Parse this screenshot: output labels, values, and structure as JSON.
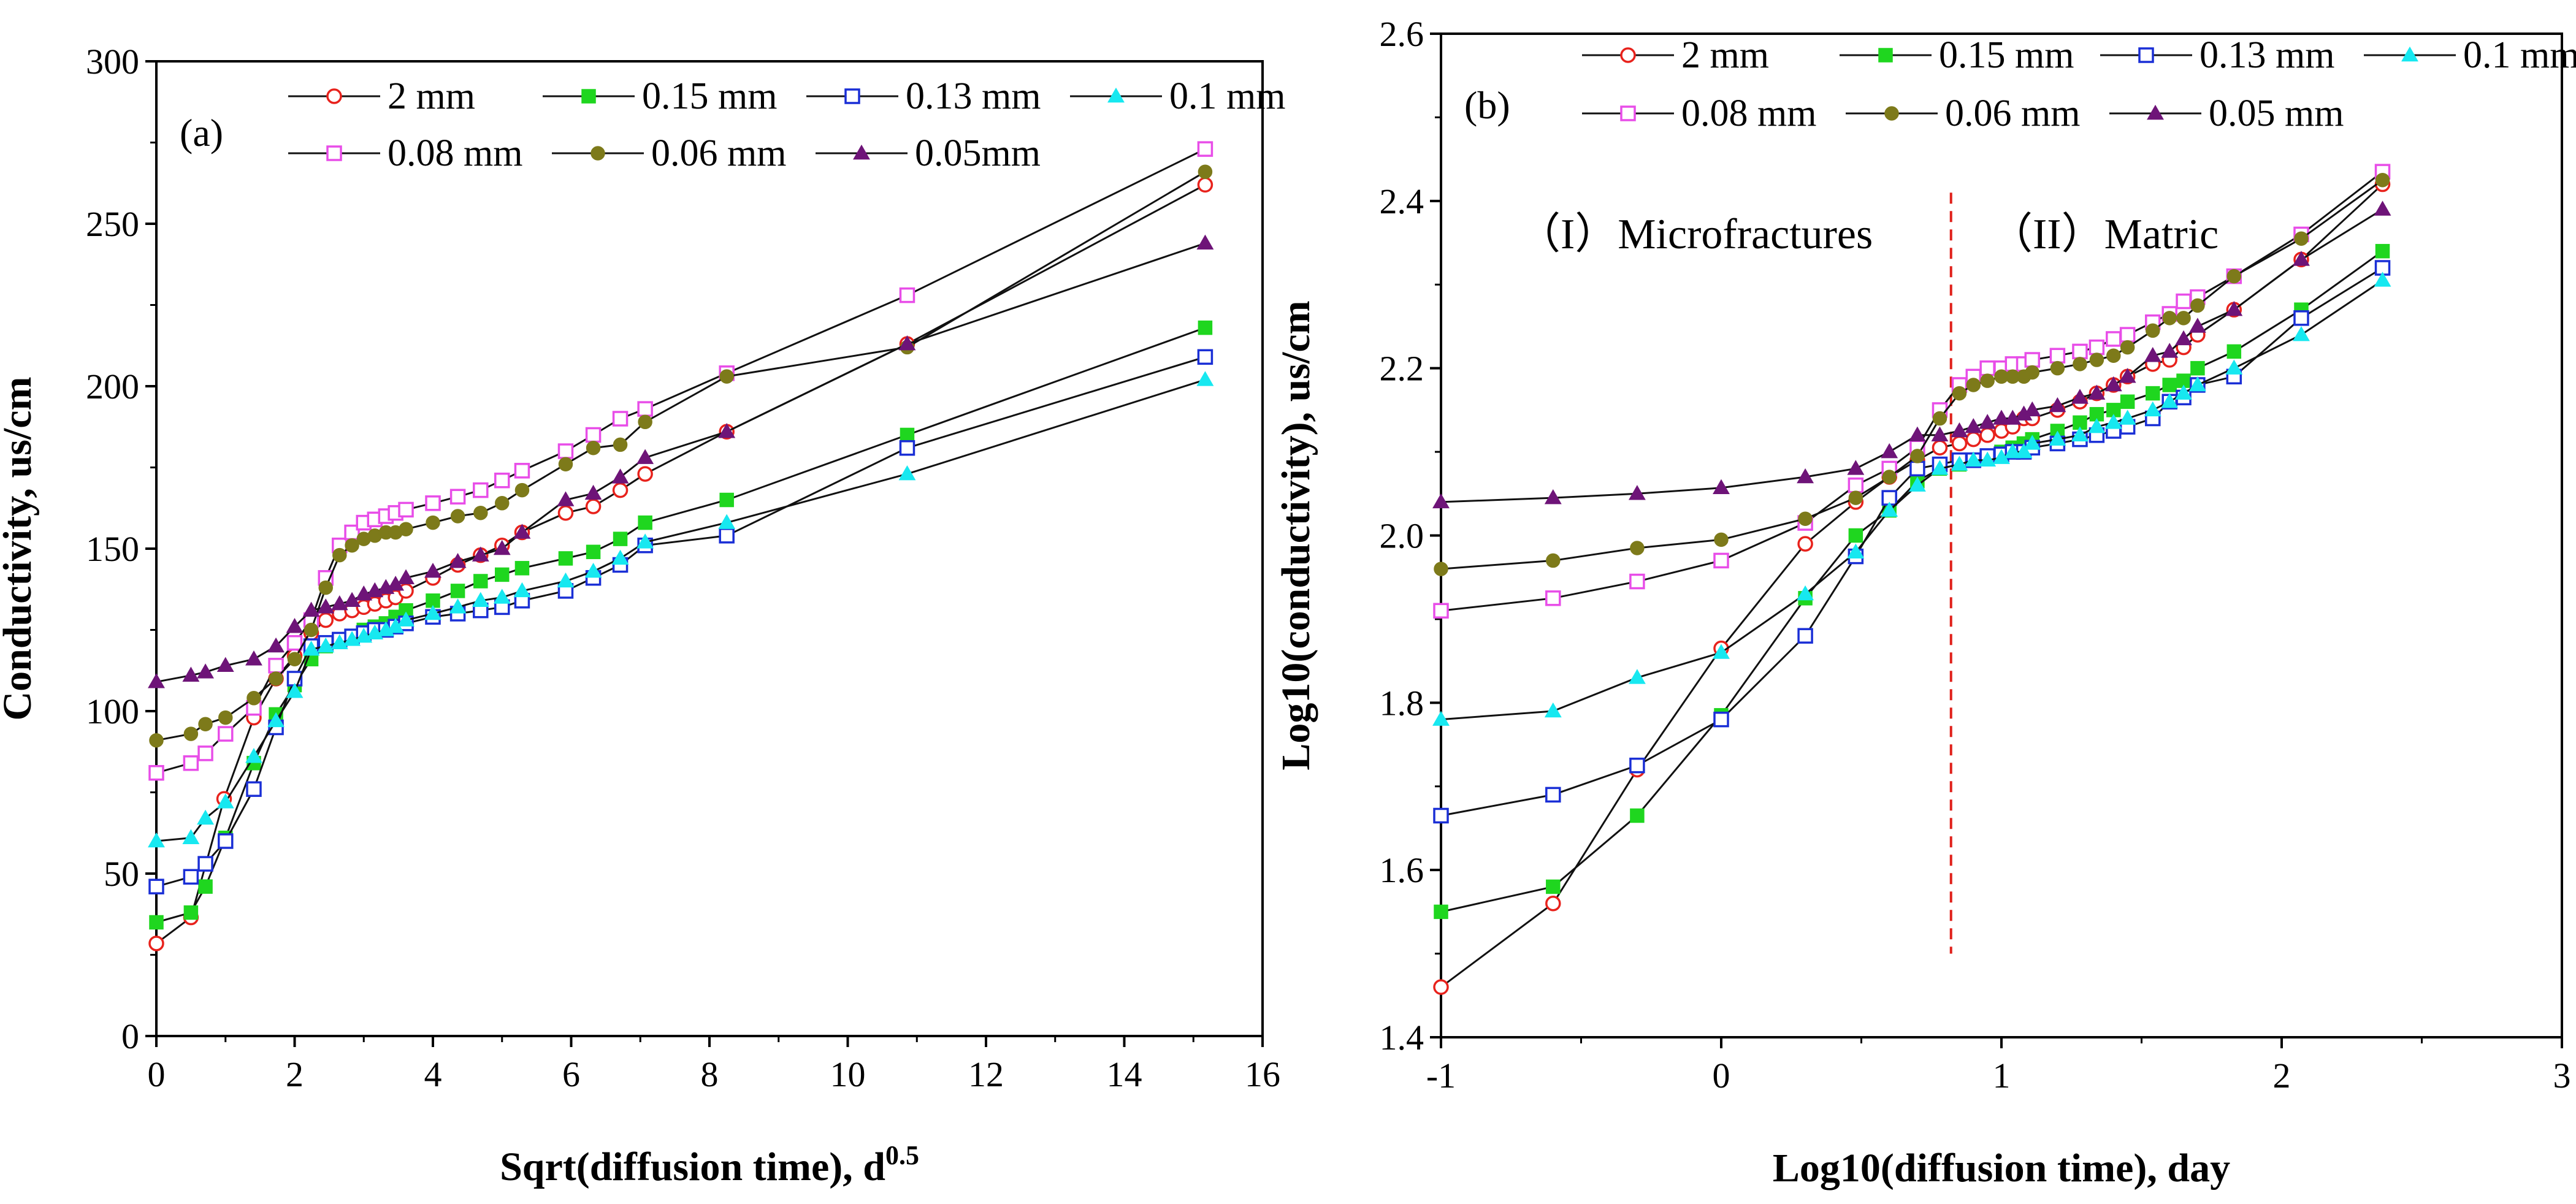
{
  "chart_data": [
    {
      "type": "line",
      "panel_label": "(a)",
      "xlabel": "Sqrt(diffusion time), d",
      "xlabel_sup": "0.5",
      "ylabel": "Conductivity, us/cm",
      "xlim": [
        0,
        16
      ],
      "ylim": [
        0,
        300
      ],
      "xticks": [
        "0",
        "2",
        "4",
        "6",
        "8",
        "10",
        "12",
        "14",
        "16"
      ],
      "yticks": [
        "0",
        "50",
        "100",
        "150",
        "200",
        "250",
        "300"
      ],
      "legend_position": "top-right",
      "series": [
        {
          "name": "2 mm",
          "marker": "circle-open",
          "color": "#e8221c",
          "x": [
            0,
            0.5,
            0.98,
            1.41,
            1.73,
            2.0,
            2.24,
            2.45,
            2.65,
            2.83,
            3.0,
            3.16,
            3.32,
            3.46,
            3.61,
            4.0,
            4.36,
            4.69,
            5.0,
            5.29,
            5.92,
            6.32,
            6.71,
            7.07,
            8.25,
            10.86,
            15.17
          ],
          "y": [
            28.5,
            36.5,
            73,
            98,
            110,
            117,
            124,
            128,
            130,
            131,
            132,
            133,
            134,
            135,
            137,
            141,
            145,
            148,
            151,
            155,
            161,
            163,
            168,
            173,
            186,
            213,
            262
          ]
        },
        {
          "name": "0.15 mm",
          "marker": "square-filled",
          "color": "#1fd61f",
          "x": [
            0,
            0.5,
            0.71,
            1.0,
            1.41,
            1.73,
            2.0,
            2.24,
            2.45,
            2.65,
            2.83,
            3.0,
            3.16,
            3.32,
            3.46,
            3.61,
            4.0,
            4.36,
            4.69,
            5.0,
            5.29,
            5.92,
            6.32,
            6.71,
            7.07,
            8.25,
            10.86,
            15.17
          ],
          "y": [
            35,
            38,
            46,
            61,
            84,
            99,
            108,
            116,
            120,
            122,
            123,
            125,
            126,
            127,
            129,
            131,
            134,
            137,
            140,
            142,
            144,
            147,
            149,
            153,
            158,
            165,
            185,
            218
          ]
        },
        {
          "name": "0.13 mm",
          "marker": "square-open",
          "color": "#1a2fd6",
          "x": [
            0,
            0.5,
            0.71,
            1.0,
            1.41,
            1.73,
            2.0,
            2.24,
            2.45,
            2.65,
            2.83,
            3.0,
            3.16,
            3.32,
            3.46,
            3.61,
            4.0,
            4.36,
            4.69,
            5.0,
            5.29,
            5.92,
            6.32,
            6.71,
            7.07,
            8.25,
            10.86,
            15.17
          ],
          "y": [
            46,
            49,
            53,
            60,
            76,
            95,
            110,
            120,
            121,
            122,
            123,
            124,
            125,
            125,
            126,
            127,
            129,
            130,
            131,
            132,
            134,
            137,
            141,
            145,
            151,
            154,
            181,
            209
          ]
        },
        {
          "name": "0.1 mm",
          "marker": "triangle-up-filled",
          "color": "#17e8f0",
          "x": [
            0,
            0.5,
            0.71,
            1.0,
            1.41,
            1.73,
            2.0,
            2.24,
            2.45,
            2.65,
            2.83,
            3.0,
            3.16,
            3.32,
            3.46,
            3.61,
            4.0,
            4.36,
            4.69,
            5.0,
            5.29,
            5.92,
            6.32,
            6.71,
            7.07,
            8.25,
            10.86,
            15.17
          ],
          "y": [
            60,
            61,
            67,
            72,
            86,
            97,
            106,
            119,
            120,
            121,
            122,
            123,
            124,
            125,
            126,
            128,
            130,
            132,
            134,
            135,
            137,
            140,
            143,
            147,
            152,
            158,
            173,
            202
          ]
        },
        {
          "name": "0.08 mm",
          "marker": "square-open",
          "color": "#e84de8",
          "x": [
            0,
            0.5,
            0.71,
            1.0,
            1.41,
            1.73,
            2.0,
            2.24,
            2.45,
            2.65,
            2.83,
            3.0,
            3.16,
            3.32,
            3.46,
            3.61,
            4.0,
            4.36,
            4.69,
            5.0,
            5.29,
            5.92,
            6.32,
            6.71,
            7.07,
            8.25,
            10.86,
            15.17
          ],
          "y": [
            81,
            84,
            87,
            93,
            101,
            114,
            121,
            128,
            141,
            151,
            155,
            158,
            159,
            160,
            161,
            162,
            164,
            166,
            168,
            171,
            174,
            180,
            185,
            190,
            193,
            204,
            228,
            273
          ]
        },
        {
          "name": "0.06 mm",
          "marker": "circle-filled",
          "color": "#7d7a1a",
          "x": [
            0,
            0.5,
            0.71,
            1.0,
            1.41,
            1.73,
            2.0,
            2.24,
            2.45,
            2.65,
            2.83,
            3.0,
            3.16,
            3.32,
            3.46,
            3.61,
            4.0,
            4.36,
            4.69,
            5.0,
            5.29,
            5.92,
            6.32,
            6.71,
            7.07,
            8.25,
            10.86,
            15.17
          ],
          "y": [
            91,
            93,
            96,
            98,
            104,
            110,
            116,
            125,
            138,
            148,
            151,
            153,
            154,
            155,
            155,
            156,
            158,
            160,
            161,
            164,
            168,
            176,
            181,
            182,
            189,
            203,
            212,
            266
          ]
        },
        {
          "name": "0.05mm",
          "marker": "triangle-up-filled",
          "color": "#6e1478",
          "x": [
            0,
            0.5,
            0.71,
            1.0,
            1.41,
            1.73,
            2.0,
            2.24,
            2.45,
            2.65,
            2.83,
            3.0,
            3.16,
            3.32,
            3.46,
            3.61,
            4.0,
            4.36,
            4.69,
            5.0,
            5.29,
            5.92,
            6.32,
            6.71,
            7.07,
            8.25,
            10.86,
            15.17
          ],
          "y": [
            109,
            111,
            112,
            114,
            116,
            120,
            126,
            131,
            132,
            133,
            134,
            136,
            137,
            138,
            139,
            141,
            143,
            146,
            148,
            150,
            155,
            165,
            167,
            172,
            178,
            186,
            213,
            244
          ]
        }
      ]
    },
    {
      "type": "line",
      "panel_label": "(b)",
      "xlabel": "Log10(diffusion time), day",
      "ylabel": "Log10(conductivity), us/cm",
      "xlim": [
        -1,
        3
      ],
      "ylim": [
        1.4,
        2.6
      ],
      "xticks": [
        "-1",
        "0",
        "1",
        "2",
        "3"
      ],
      "yticks": [
        "1.4",
        "1.6",
        "1.8",
        "2.0",
        "2.2",
        "2.4",
        "2.6"
      ],
      "legend_position": "top",
      "divider_x": 0.82,
      "region_labels": [
        "（I）Microfractures",
        "（II）Matric"
      ],
      "series": [
        {
          "name": "2 mm",
          "marker": "circle-open",
          "color": "#e8221c",
          "x": [
            -1,
            -0.6,
            -0.3,
            0,
            0.3,
            0.48,
            0.6,
            0.7,
            0.78,
            0.85,
            0.9,
            0.95,
            1.0,
            1.04,
            1.08,
            1.11,
            1.2,
            1.28,
            1.34,
            1.4,
            1.45,
            1.54,
            1.6,
            1.65,
            1.7,
            1.83,
            2.07,
            2.36
          ],
          "y": [
            1.46,
            1.56,
            1.72,
            1.865,
            1.99,
            2.04,
            2.07,
            2.09,
            2.105,
            2.11,
            2.115,
            2.12,
            2.125,
            2.13,
            2.14,
            2.14,
            2.15,
            2.16,
            2.17,
            2.18,
            2.19,
            2.205,
            2.21,
            2.225,
            2.24,
            2.27,
            2.33,
            2.42
          ]
        },
        {
          "name": "0.15 mm",
          "marker": "square-filled",
          "color": "#1fd61f",
          "x": [
            -1,
            -0.6,
            -0.3,
            0,
            0.3,
            0.48,
            0.6,
            0.7,
            0.78,
            0.85,
            0.9,
            0.95,
            1.0,
            1.04,
            1.08,
            1.11,
            1.2,
            1.28,
            1.34,
            1.4,
            1.45,
            1.54,
            1.6,
            1.65,
            1.7,
            1.83,
            2.07,
            2.36
          ],
          "y": [
            1.55,
            1.58,
            1.665,
            1.785,
            1.925,
            2.0,
            2.03,
            2.065,
            2.08,
            2.085,
            2.09,
            2.095,
            2.1,
            2.105,
            2.11,
            2.115,
            2.125,
            2.135,
            2.145,
            2.15,
            2.16,
            2.17,
            2.18,
            2.185,
            2.2,
            2.22,
            2.27,
            2.34
          ]
        },
        {
          "name": "0.13 mm",
          "marker": "square-open",
          "color": "#1a2fd6",
          "x": [
            -1,
            -0.6,
            -0.3,
            0,
            0.3,
            0.48,
            0.6,
            0.7,
            0.78,
            0.85,
            0.9,
            0.95,
            1.0,
            1.04,
            1.08,
            1.11,
            1.2,
            1.28,
            1.34,
            1.4,
            1.45,
            1.54,
            1.6,
            1.65,
            1.7,
            1.83,
            2.07,
            2.36
          ],
          "y": [
            1.665,
            1.69,
            1.725,
            1.78,
            1.88,
            1.975,
            2.045,
            2.08,
            2.085,
            2.09,
            2.09,
            2.095,
            2.097,
            2.1,
            2.1,
            2.105,
            2.11,
            2.115,
            2.12,
            2.125,
            2.13,
            2.14,
            2.16,
            2.165,
            2.18,
            2.19,
            2.26,
            2.32
          ]
        },
        {
          "name": "0.1 mm",
          "marker": "triangle-up-filled",
          "color": "#17e8f0",
          "x": [
            -1,
            -0.6,
            -0.3,
            0,
            0.3,
            0.48,
            0.6,
            0.7,
            0.78,
            0.85,
            0.9,
            0.95,
            1.0,
            1.04,
            1.08,
            1.11,
            1.2,
            1.28,
            1.34,
            1.4,
            1.45,
            1.54,
            1.6,
            1.65,
            1.7,
            1.83,
            2.07,
            2.36
          ],
          "y": [
            1.78,
            1.79,
            1.83,
            1.86,
            1.93,
            1.98,
            2.03,
            2.06,
            2.08,
            2.085,
            2.09,
            2.09,
            2.093,
            2.1,
            2.1,
            2.11,
            2.115,
            2.12,
            2.13,
            2.135,
            2.14,
            2.15,
            2.16,
            2.17,
            2.18,
            2.2,
            2.24,
            2.305
          ]
        },
        {
          "name": "0.08 mm",
          "marker": "square-open",
          "color": "#e84de8",
          "x": [
            -1,
            -0.6,
            -0.3,
            0,
            0.3,
            0.48,
            0.6,
            0.7,
            0.78,
            0.85,
            0.9,
            0.95,
            1.0,
            1.04,
            1.08,
            1.11,
            1.2,
            1.28,
            1.34,
            1.4,
            1.45,
            1.54,
            1.6,
            1.65,
            1.7,
            1.83,
            2.07,
            2.36
          ],
          "y": [
            1.91,
            1.925,
            1.945,
            1.97,
            2.015,
            2.06,
            2.08,
            2.105,
            2.15,
            2.18,
            2.19,
            2.2,
            2.2,
            2.205,
            2.205,
            2.21,
            2.215,
            2.22,
            2.225,
            2.235,
            2.24,
            2.255,
            2.265,
            2.28,
            2.285,
            2.31,
            2.36,
            2.435
          ]
        },
        {
          "name": "0.06 mm",
          "marker": "circle-filled",
          "color": "#7d7a1a",
          "x": [
            -1,
            -0.6,
            -0.3,
            0,
            0.3,
            0.48,
            0.6,
            0.7,
            0.78,
            0.85,
            0.9,
            0.95,
            1.0,
            1.04,
            1.08,
            1.11,
            1.2,
            1.28,
            1.34,
            1.4,
            1.45,
            1.54,
            1.6,
            1.65,
            1.7,
            1.83,
            2.07,
            2.36
          ],
          "y": [
            1.96,
            1.97,
            1.985,
            1.995,
            2.02,
            2.045,
            2.07,
            2.095,
            2.14,
            2.17,
            2.18,
            2.185,
            2.19,
            2.19,
            2.19,
            2.195,
            2.2,
            2.205,
            2.21,
            2.215,
            2.225,
            2.245,
            2.26,
            2.26,
            2.275,
            2.31,
            2.355,
            2.425
          ]
        },
        {
          "name": "0.05 mm",
          "marker": "triangle-up-filled",
          "color": "#6e1478",
          "x": [
            -1,
            -0.6,
            -0.3,
            0,
            0.3,
            0.48,
            0.6,
            0.7,
            0.78,
            0.85,
            0.9,
            0.95,
            1.0,
            1.04,
            1.08,
            1.11,
            1.2,
            1.28,
            1.34,
            1.4,
            1.45,
            1.54,
            1.6,
            1.65,
            1.7,
            1.83,
            2.07,
            2.36
          ],
          "y": [
            2.04,
            2.045,
            2.05,
            2.057,
            2.07,
            2.08,
            2.1,
            2.12,
            2.12,
            2.125,
            2.13,
            2.135,
            2.14,
            2.14,
            2.145,
            2.15,
            2.155,
            2.165,
            2.17,
            2.18,
            2.19,
            2.215,
            2.22,
            2.235,
            2.25,
            2.27,
            2.33,
            2.39
          ]
        }
      ]
    }
  ]
}
